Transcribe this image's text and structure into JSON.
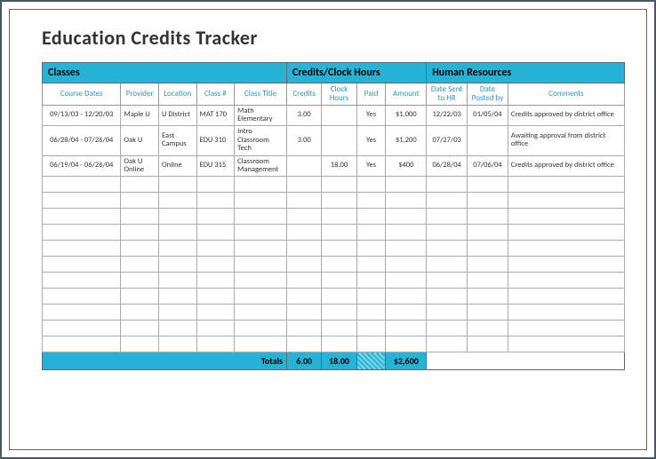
{
  "title": "Education Credits Tracker",
  "sections": {
    "classes": "Classes",
    "credits": "Credits/Clock Hours",
    "hr": "Human Resources"
  },
  "headers": {
    "course_dates": "Course Dates",
    "provider": "Provider",
    "location": "Location",
    "class_num": "Class #",
    "class_title": "Class Title",
    "credits": "Credits",
    "clock_hours": "Clock Hours",
    "paid": "Paid",
    "amount": "Amount",
    "date_sent": "Date Sent to HR",
    "date_posted": "Date Posted by",
    "comments": "Comments"
  },
  "rows": [
    {
      "dates": "09/13/03 - 12/20/03",
      "provider": "Maple U",
      "location": "U District",
      "classnum": "MAT 170",
      "title": "Math Elementary",
      "credits": "3.00",
      "clock": "",
      "paid": "Yes",
      "amount": "$1,000",
      "sent": "12/22/03",
      "posted": "01/05/04",
      "comments": "Credits approved by district office"
    },
    {
      "dates": "06/28/04 - 07/26/04",
      "provider": "Oak U",
      "location": "East Campus",
      "classnum": "EDU 310",
      "title": "Intro Classroom Tech",
      "credits": "3.00",
      "clock": "",
      "paid": "Yes",
      "amount": "$1,200",
      "sent": "07/27/03",
      "posted": "",
      "comments": "Awaiting approval from district office"
    },
    {
      "dates": "06/19/04 - 06/26/04",
      "provider": "Oak U Online",
      "location": "Online",
      "classnum": "EDU 315",
      "title": "Classroom Management",
      "credits": "",
      "clock": "18.00",
      "paid": "Yes",
      "amount": "$400",
      "sent": "06/28/04",
      "posted": "07/06/04",
      "comments": "Credits approved by district office"
    }
  ],
  "totals": {
    "label": "Totals",
    "credits": "6.00",
    "clock": "18.00",
    "amount": "$2,600"
  },
  "colors": {
    "accent": "#25b3d8",
    "header_text": "#2a9ab8",
    "border": "#666666",
    "cell_border": "#aaaaaa",
    "text": "#333333"
  },
  "columns": {
    "widths_pct": [
      13.5,
      6.5,
      6.5,
      6.5,
      9,
      6,
      6,
      5,
      7,
      7,
      7,
      20
    ]
  },
  "empty_row_count": 11
}
